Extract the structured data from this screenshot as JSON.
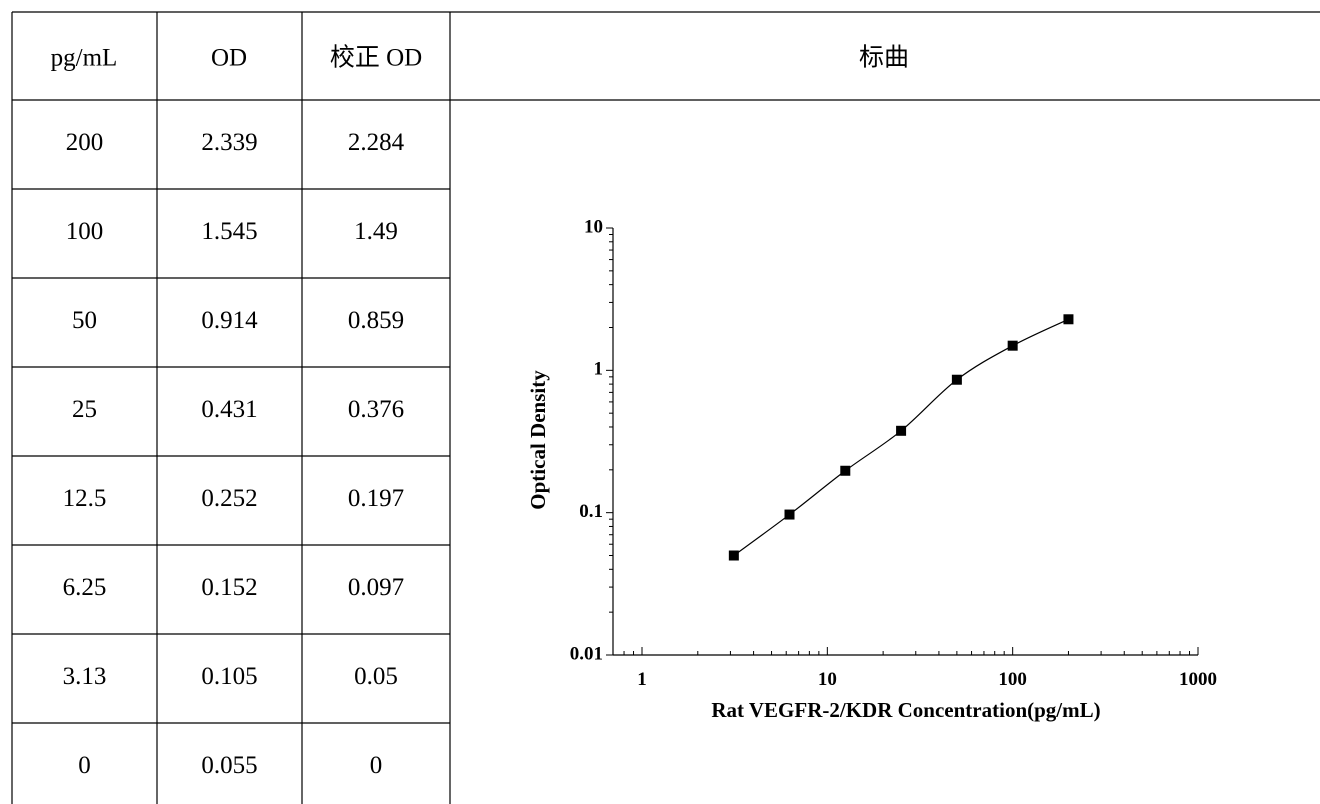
{
  "table": {
    "headers": [
      "pg/mL",
      "OD",
      "校正 OD",
      "标曲"
    ],
    "rows": [
      [
        "200",
        "2.339",
        "2.284"
      ],
      [
        "100",
        "1.545",
        "1.49"
      ],
      [
        "50",
        "0.914",
        "0.859"
      ],
      [
        "25",
        "0.431",
        "0.376"
      ],
      [
        "12.5",
        "0.252",
        "0.197"
      ],
      [
        "6.25",
        "0.152",
        "0.097"
      ],
      [
        "3.13",
        "0.105",
        "0.05"
      ],
      [
        "0",
        "0.055",
        "0"
      ]
    ]
  },
  "chart_data": {
    "type": "line",
    "xlabel": "Rat VEGFR-2/KDR Concentration(pg/mL)",
    "ylabel": "Optical Density",
    "xscale": "log",
    "yscale": "log",
    "xlim": [
      1,
      1000
    ],
    "ylim": [
      0.01,
      10
    ],
    "xticks": [
      "1",
      "10",
      "100",
      "1000"
    ],
    "yticks": [
      "0.01",
      "0.1",
      "1",
      "10"
    ],
    "grid": false,
    "legend": "none",
    "series": [
      {
        "marker": "square",
        "color": "#000000",
        "x": [
          3.13,
          6.25,
          12.5,
          25,
          50,
          100,
          200
        ],
        "y": [
          0.05,
          0.097,
          0.197,
          0.376,
          0.859,
          1.49,
          2.284
        ]
      }
    ]
  }
}
